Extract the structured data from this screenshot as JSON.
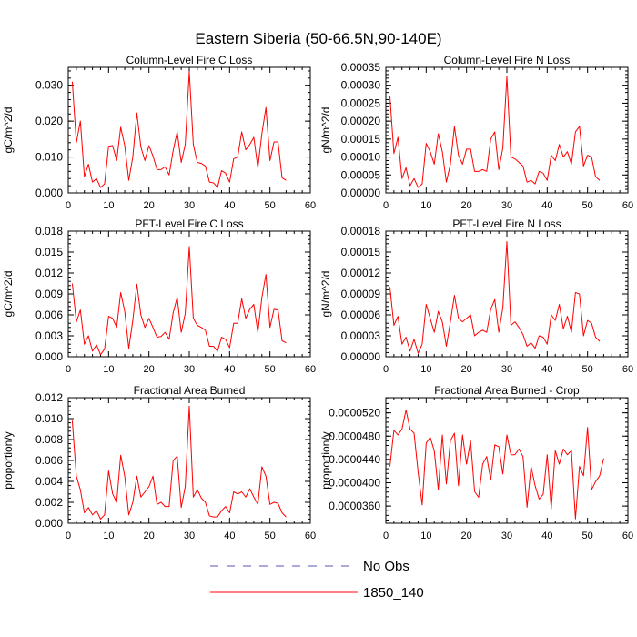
{
  "page_title": "Eastern Siberia (50-66.5N,90-140E)",
  "colors": {
    "line": "#ff0000",
    "obs": "#5a5ab4",
    "axis": "#000000"
  },
  "legend": [
    {
      "label": "No Obs",
      "style": "dashed",
      "color": "#5a5ab4"
    },
    {
      "label": "1850_140",
      "style": "solid",
      "color": "#ff0000"
    }
  ],
  "chart_data": [
    {
      "type": "line",
      "title": "Column-Level Fire C Loss",
      "ylabel": "gC/m^2/d",
      "xlim": [
        0,
        60
      ],
      "ylim": [
        0,
        0.035
      ],
      "yticks": [
        0,
        0.01,
        0.02,
        0.03
      ],
      "ytick_labels": [
        "0.000",
        "0.010",
        "0.020",
        "0.030"
      ],
      "xticks": [
        0,
        10,
        20,
        30,
        40,
        50,
        60
      ],
      "series": [
        {
          "name": "1850_140",
          "x_start": 1,
          "values": [
            0.031,
            0.014,
            0.02,
            0.0045,
            0.008,
            0.003,
            0.004,
            0.0015,
            0.0025,
            0.013,
            0.0132,
            0.009,
            0.0183,
            0.0132,
            0.0035,
            0.01,
            0.0223,
            0.0128,
            0.009,
            0.0132,
            0.0103,
            0.0065,
            0.0065,
            0.0073,
            0.005,
            0.0118,
            0.017,
            0.0085,
            0.0135,
            0.0338,
            0.0135,
            0.0085,
            0.0082,
            0.0075,
            0.003,
            0.0028,
            0.0015,
            0.0062,
            0.0055,
            0.003,
            0.0095,
            0.01,
            0.017,
            0.012,
            0.0135,
            0.0155,
            0.007,
            0.0165,
            0.0238,
            0.009,
            0.0142,
            0.0142,
            0.0042,
            0.0035
          ]
        }
      ]
    },
    {
      "type": "line",
      "title": "Column-Level Fire N Loss",
      "ylabel": "gN/m^2/d",
      "xlim": [
        0,
        60
      ],
      "ylim": [
        0,
        0.00035
      ],
      "yticks": [
        0,
        5e-05,
        0.0001,
        0.00015,
        0.0002,
        0.00025,
        0.0003,
        0.00035
      ],
      "ytick_labels": [
        "0.00000",
        "0.00005",
        "0.00010",
        "0.00015",
        "0.00020",
        "0.00025",
        "0.00030",
        "0.00035"
      ],
      "xticks": [
        0,
        10,
        20,
        30,
        40,
        50,
        60
      ],
      "series": [
        {
          "name": "1850_140",
          "x_start": 1,
          "values": [
            0.00027,
            0.00011,
            0.000155,
            4e-05,
            7e-05,
            2e-05,
            4e-05,
            1.5e-05,
            2.5e-05,
            0.000138,
            0.000115,
            8e-05,
            0.000165,
            0.000115,
            3e-05,
            8e-05,
            0.000185,
            0.000105,
            8e-05,
            0.000122,
            0.000122,
            6e-05,
            6e-05,
            6.5e-05,
            6e-05,
            0.00015,
            0.00017,
            6.5e-05,
            0.000125,
            0.000325,
            0.0001,
            9.5e-05,
            8.5e-05,
            7.5e-05,
            3e-05,
            3.5e-05,
            2.5e-05,
            6e-05,
            5.5e-05,
            3.5e-05,
            0.000105,
            9e-05,
            0.000135,
            0.0001,
            0.000115,
            8e-05,
            0.00017,
            0.000185,
            7.5e-05,
            0.000105,
            0.0001,
            4.5e-05,
            3.5e-05
          ]
        }
      ]
    },
    {
      "type": "line",
      "title": "PFT-Level Fire C Loss",
      "ylabel": "gC/m^2/d",
      "xlim": [
        0,
        60
      ],
      "ylim": [
        0,
        0.018
      ],
      "yticks": [
        0,
        0.003,
        0.006,
        0.009,
        0.012,
        0.015,
        0.018
      ],
      "ytick_labels": [
        "0.000",
        "0.003",
        "0.006",
        "0.009",
        "0.012",
        "0.015",
        "0.018"
      ],
      "xticks": [
        0,
        10,
        20,
        30,
        40,
        50,
        60
      ],
      "series": [
        {
          "name": "1850_140",
          "x_start": 1,
          "values": [
            0.0105,
            0.005,
            0.0067,
            0.0018,
            0.003,
            0.0008,
            0.0017,
            0.0003,
            0.0011,
            0.0058,
            0.0055,
            0.0042,
            0.0092,
            0.0065,
            0.0012,
            0.0052,
            0.0104,
            0.006,
            0.0042,
            0.0055,
            0.0042,
            0.0028,
            0.0029,
            0.0035,
            0.0025,
            0.0063,
            0.0085,
            0.0035,
            0.0062,
            0.0158,
            0.0055,
            0.0045,
            0.0042,
            0.0038,
            0.0015,
            0.0015,
            0.0008,
            0.0028,
            0.0025,
            0.0013,
            0.0048,
            0.0048,
            0.0083,
            0.0055,
            0.0068,
            0.0075,
            0.0035,
            0.0085,
            0.0118,
            0.0042,
            0.0068,
            0.0067,
            0.0023,
            0.002
          ]
        }
      ]
    },
    {
      "type": "line",
      "title": "PFT-Level Fire N Loss",
      "ylabel": "gN/m^2/d",
      "xlim": [
        0,
        60
      ],
      "ylim": [
        0,
        0.00018
      ],
      "yticks": [
        0,
        3e-05,
        6e-05,
        9e-05,
        0.00012,
        0.00015,
        0.00018
      ],
      "ytick_labels": [
        "0.00000",
        "0.00003",
        "0.00006",
        "0.00009",
        "0.00012",
        "0.00015",
        "0.00018"
      ],
      "xticks": [
        0,
        10,
        20,
        30,
        40,
        50,
        60
      ],
      "series": [
        {
          "name": "1850_140",
          "x_start": 1,
          "values": [
            0.0001,
            4.5e-05,
            5.8e-05,
            1.8e-05,
            2.8e-05,
            8e-06,
            2.5e-05,
            5e-06,
            1.8e-05,
            7.5e-05,
            5.5e-05,
            3.5e-05,
            6.5e-05,
            5e-05,
            1.5e-05,
            5e-05,
            8.8e-05,
            5.5e-05,
            5e-05,
            5.5e-05,
            6e-05,
            3e-05,
            3.5e-05,
            3.8e-05,
            3.5e-05,
            6.8e-05,
            8.2e-05,
            3.5e-05,
            7e-05,
            0.000165,
            4.5e-05,
            5e-05,
            4.2e-05,
            3.2e-05,
            1.5e-05,
            2e-05,
            1.2e-05,
            3e-05,
            2.8e-05,
            1.8e-05,
            6e-05,
            5.2e-05,
            7.5e-05,
            4e-05,
            5.8e-05,
            3.5e-05,
            9.2e-05,
            9e-05,
            3e-05,
            5.2e-05,
            4.8e-05,
            2.8e-05,
            2.2e-05
          ]
        }
      ]
    },
    {
      "type": "line",
      "title": "Fractional Area Burned",
      "ylabel": "proportion/y",
      "xlim": [
        0,
        60
      ],
      "ylim": [
        0,
        0.012
      ],
      "yticks": [
        0,
        0.002,
        0.004,
        0.006,
        0.008,
        0.01,
        0.012
      ],
      "ytick_labels": [
        "0.000",
        "0.002",
        "0.004",
        "0.006",
        "0.008",
        "0.010",
        "0.012"
      ],
      "xticks": [
        0,
        10,
        20,
        30,
        40,
        50,
        60
      ],
      "series": [
        {
          "name": "1850_140",
          "x_start": 1,
          "values": [
            0.0098,
            0.0045,
            0.0032,
            0.001,
            0.0015,
            0.0008,
            0.0012,
            0.0004,
            0.0008,
            0.005,
            0.0028,
            0.002,
            0.0065,
            0.0045,
            0.0008,
            0.002,
            0.0045,
            0.0025,
            0.003,
            0.0035,
            0.0045,
            0.0018,
            0.002,
            0.0016,
            0.0016,
            0.006,
            0.0064,
            0.0015,
            0.0035,
            0.0112,
            0.0025,
            0.0032,
            0.0024,
            0.002,
            0.0007,
            0.0006,
            0.0006,
            0.0012,
            0.0016,
            0.001,
            0.003,
            0.0028,
            0.003,
            0.0025,
            0.0033,
            0.0025,
            0.0018,
            0.0054,
            0.0045,
            0.0018,
            0.002,
            0.0019,
            0.001,
            0.0006
          ]
        }
      ]
    },
    {
      "type": "line",
      "title": "Fractional Area Burned - Crop",
      "ylabel": "proportion/y",
      "xlim": [
        0,
        60
      ],
      "ylim": [
        3.305e-05,
        5.46e-05
      ],
      "yticks": [
        3.6e-05,
        4e-05,
        4.4e-05,
        4.8e-05,
        5.2e-05
      ],
      "ytick_labels": [
        "0.0000360",
        "0.0000400",
        "0.0000440",
        "0.0000480",
        "0.0000520"
      ],
      "xticks": [
        0,
        10,
        20,
        30,
        40,
        50,
        60
      ],
      "series": [
        {
          "name": "1850_140",
          "x_start": 1,
          "values": [
            4.28e-05,
            4.9e-05,
            4.82e-05,
            4.92e-05,
            5.25e-05,
            4.92e-05,
            4.85e-05,
            4.18e-05,
            3.62e-05,
            4.68e-05,
            4.78e-05,
            4.55e-05,
            3.88e-05,
            4.82e-05,
            3.98e-05,
            4.72e-05,
            4.85e-05,
            3.95e-05,
            4.82e-05,
            4.32e-05,
            4.72e-05,
            3.85e-05,
            3.75e-05,
            4.32e-05,
            4.45e-05,
            4.05e-05,
            4.65e-05,
            4.62e-05,
            4.15e-05,
            4.82e-05,
            4.48e-05,
            4.48e-05,
            4.58e-05,
            4.45e-05,
            3.58e-05,
            4.28e-05,
            3.95e-05,
            3.72e-05,
            3.8e-05,
            4.48e-05,
            3.55e-05,
            4.55e-05,
            4.32e-05,
            4.58e-05,
            4.48e-05,
            4.55e-05,
            3.38e-05,
            4.28e-05,
            4.12e-05,
            4.95e-05,
            3.88e-05,
            4.02e-05,
            4.12e-05,
            4.42e-05
          ]
        }
      ]
    }
  ]
}
